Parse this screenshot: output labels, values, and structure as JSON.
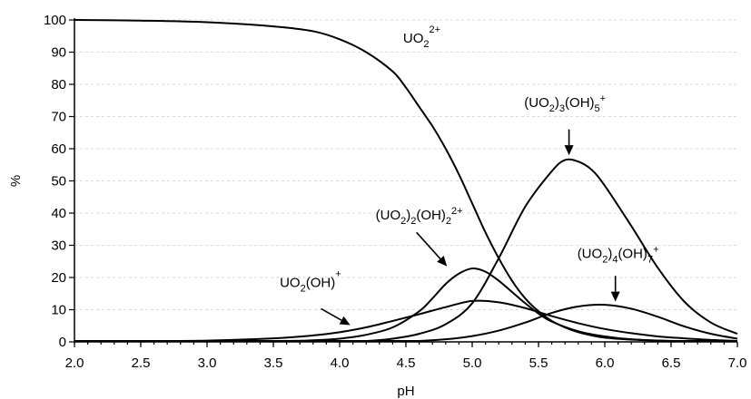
{
  "chart_data": {
    "type": "line",
    "title": "",
    "xlabel": "pH",
    "ylabel": "%",
    "xlim": [
      2.0,
      7.0
    ],
    "ylim": [
      0,
      100
    ],
    "xticks": [
      "2.0",
      "2.5",
      "3.0",
      "3.5",
      "4.0",
      "4.5",
      "5.0",
      "5.5",
      "6.0",
      "6.5",
      "7.0"
    ],
    "yticks": [
      "0",
      "10",
      "20",
      "30",
      "40",
      "50",
      "60",
      "70",
      "80",
      "90",
      "100"
    ],
    "grid": true,
    "legend": "none",
    "series": [
      {
        "id": "s-uo2",
        "x": [
          2.0,
          2.5,
          3.0,
          3.5,
          3.8,
          4.0,
          4.2,
          4.4,
          4.5,
          4.6,
          4.7,
          4.8,
          4.9,
          5.0,
          5.1,
          5.2,
          5.3,
          5.4,
          5.5,
          5.6,
          5.7,
          5.8,
          5.9,
          6.0,
          6.2,
          6.4,
          6.6,
          6.8,
          7.0
        ],
        "values": [
          100,
          99.8,
          99.3,
          98,
          96.5,
          94,
          90,
          84,
          79,
          73,
          67,
          60,
          52,
          43,
          34,
          26,
          19,
          13.5,
          9.5,
          6.5,
          4.5,
          3,
          2,
          1.3,
          0.7,
          0.4,
          0.2,
          0.1,
          0
        ]
      },
      {
        "id": "s-uo2oh",
        "x": [
          2.0,
          2.5,
          3.0,
          3.5,
          3.8,
          4.0,
          4.2,
          4.4,
          4.6,
          4.8,
          5.0,
          5.2,
          5.4,
          5.6,
          5.8,
          6.0,
          6.2,
          6.4,
          6.6,
          6.8,
          7.0
        ],
        "values": [
          0,
          0.1,
          0.4,
          1.1,
          2.0,
          3.0,
          4.5,
          6.5,
          8.6,
          10.8,
          12.7,
          12.3,
          10.5,
          8.0,
          5.8,
          4.0,
          2.7,
          1.7,
          1.1,
          0.6,
          0.3
        ]
      },
      {
        "id": "s-uo22oh2",
        "x": [
          2.0,
          3.5,
          3.8,
          4.0,
          4.2,
          4.4,
          4.6,
          4.7,
          4.8,
          4.9,
          5.0,
          5.1,
          5.2,
          5.3,
          5.4,
          5.5,
          5.6,
          5.8,
          6.0,
          6.2,
          6.5,
          7.0
        ],
        "values": [
          0,
          0.1,
          0.5,
          1.0,
          2.2,
          4.5,
          9.5,
          13.5,
          18,
          21.2,
          22.8,
          21.8,
          19,
          15.5,
          12,
          8.8,
          6.3,
          3.3,
          1.7,
          0.8,
          0.3,
          0
        ]
      },
      {
        "id": "s-uo23oh5",
        "x": [
          2.0,
          4.0,
          4.2,
          4.4,
          4.6,
          4.8,
          5.0,
          5.2,
          5.4,
          5.6,
          5.7,
          5.8,
          5.9,
          6.0,
          6.2,
          6.4,
          6.6,
          6.8,
          7.0
        ],
        "values": [
          0,
          0.1,
          0.3,
          1.0,
          2.5,
          5.5,
          12,
          26,
          42,
          53,
          56.5,
          56,
          53.5,
          48.5,
          36,
          23,
          12.5,
          6,
          2.5
        ]
      },
      {
        "id": "s-uo24oh7",
        "x": [
          2.0,
          4.4,
          4.6,
          4.8,
          5.0,
          5.2,
          5.4,
          5.6,
          5.8,
          6.0,
          6.2,
          6.4,
          6.6,
          6.8,
          7.0
        ],
        "values": [
          0,
          0.1,
          0.3,
          0.8,
          1.8,
          3.5,
          6.0,
          9.0,
          11.0,
          11.5,
          10.3,
          7.8,
          4.8,
          2.5,
          1.0
        ]
      }
    ],
    "annotations": [
      {
        "id": "ann-uo2",
        "base": "UO",
        "sub": "2",
        "sup": "2+",
        "x": 4.62,
        "y": 93,
        "arrow": null
      },
      {
        "id": "ann-uo23oh5",
        "parts": [
          [
            "t",
            "(UO"
          ],
          [
            "sub",
            "2"
          ],
          [
            "t",
            ")"
          ],
          [
            "sub",
            "3"
          ],
          [
            "t",
            "(OH)"
          ],
          [
            "sub",
            "5"
          ],
          [
            "sup",
            "+"
          ]
        ],
        "x": 5.7,
        "y": 73,
        "arrow": {
          "from": [
            5.73,
            66
          ],
          "to": [
            5.73,
            58
          ]
        }
      },
      {
        "id": "ann-uo22oh2",
        "parts": [
          [
            "t",
            "(UO"
          ],
          [
            "sub",
            "2"
          ],
          [
            "t",
            ")"
          ],
          [
            "sub",
            "2"
          ],
          [
            "t",
            "(OH)"
          ],
          [
            "sub",
            "2"
          ],
          [
            "sup",
            "2+"
          ]
        ],
        "x": 4.6,
        "y": 38,
        "arrow": {
          "from": [
            4.58,
            34
          ],
          "to": [
            4.81,
            23.5
          ]
        }
      },
      {
        "id": "ann-uo24oh7",
        "parts": [
          [
            "t",
            "(UO"
          ],
          [
            "sub",
            "2"
          ],
          [
            "t",
            ")"
          ],
          [
            "sub",
            "4"
          ],
          [
            "t",
            "(OH)"
          ],
          [
            "sub",
            "7"
          ],
          [
            "sup",
            "+"
          ]
        ],
        "x": 6.1,
        "y": 26,
        "arrow": {
          "from": [
            6.08,
            20.5
          ],
          "to": [
            6.08,
            12.5
          ]
        }
      },
      {
        "id": "ann-uo2oh",
        "parts": [
          [
            "t",
            "UO"
          ],
          [
            "sub",
            "2"
          ],
          [
            "t",
            "(OH)"
          ],
          [
            "sup",
            "+"
          ]
        ],
        "x": 3.78,
        "y": 17,
        "arrow": {
          "from": [
            3.86,
            10.3
          ],
          "to": [
            4.08,
            5.2
          ]
        }
      }
    ]
  }
}
